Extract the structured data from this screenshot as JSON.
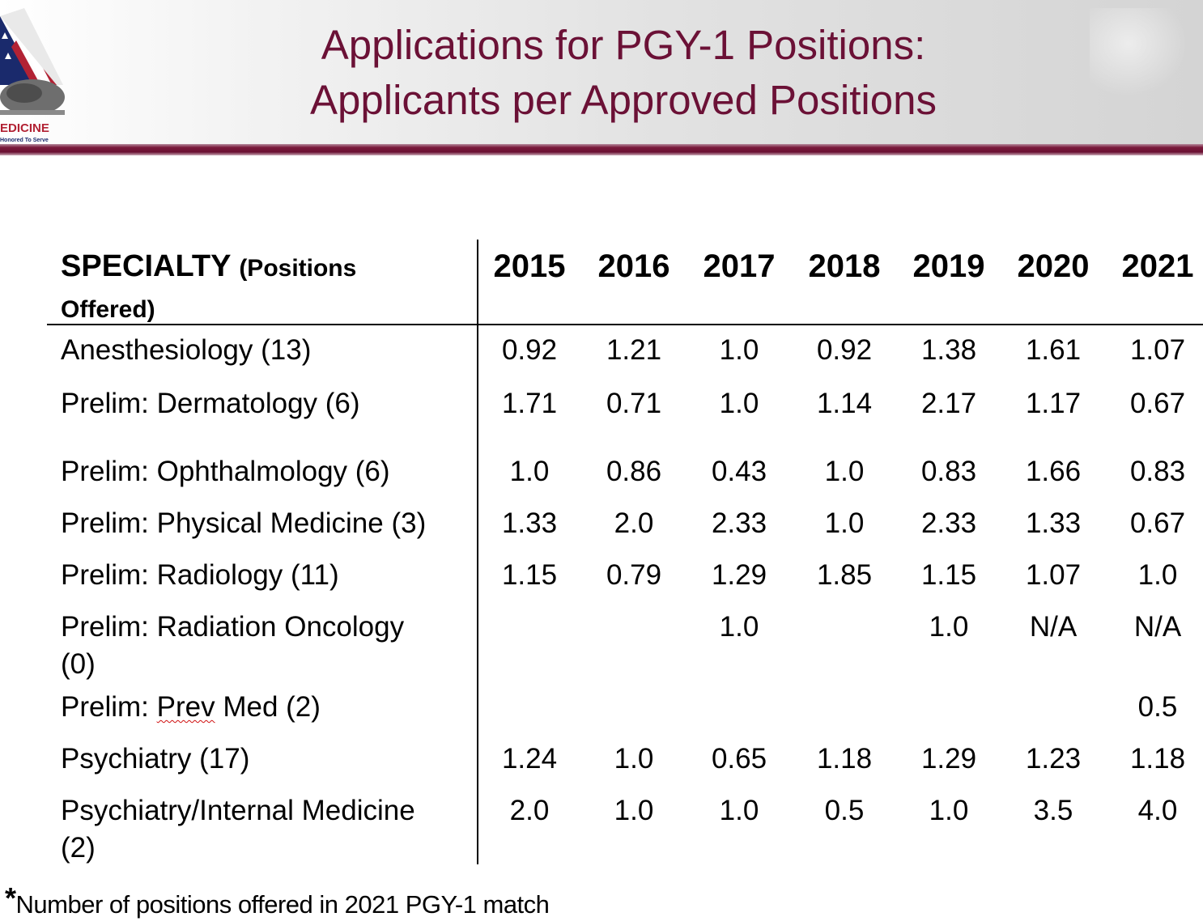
{
  "title": {
    "line1": "Applications for PGY-1 Positions:",
    "line2": "Applicants per Approved Positions"
  },
  "logo": {
    "text": "EDICINE",
    "subtext": "Honored To Serve"
  },
  "colors": {
    "title": "#6b1136",
    "rule": "#6a1032"
  },
  "table": {
    "specialty_header": "SPECIALTY",
    "specialty_header_suffix": "(Positions",
    "specialty_header_line2": "Offered)",
    "years": [
      "2015",
      "2016",
      "2017",
      "2018",
      "2019",
      "2020",
      "2021"
    ],
    "rows": [
      {
        "name": "Anesthesiology (13)",
        "values": [
          "0.92",
          "1.21",
          "1.0",
          "0.92",
          "1.38",
          "1.61",
          "1.07"
        ]
      },
      {
        "name": "Prelim: Dermatology (6)",
        "values": [
          "1.71",
          "0.71",
          "1.0",
          "1.14",
          "2.17",
          "1.17",
          "0.67"
        ]
      },
      {
        "name": "Prelim: Ophthalmology (6)",
        "values": [
          "1.0",
          "0.86",
          "0.43",
          "1.0",
          "0.83",
          "1.66",
          "0.83"
        ]
      },
      {
        "name": "Prelim: Physical Medicine (3)",
        "values": [
          "1.33",
          "2.0",
          "2.33",
          "1.0",
          "2.33",
          "1.33",
          "0.67"
        ]
      },
      {
        "name": "Prelim: Radiology (11)",
        "values": [
          "1.15",
          "0.79",
          "1.29",
          "1.85",
          "1.15",
          "1.07",
          "1.0"
        ]
      },
      {
        "name_line1": "Prelim: Radiation Oncology",
        "name_line2": "(0)",
        "values": [
          "",
          "",
          "1.0",
          "",
          "1.0",
          "N/A",
          "N/A"
        ]
      },
      {
        "name_prefix": "Prelim: ",
        "name_squiggle": "Prev",
        "name_suffix": " Med (2)",
        "values": [
          "",
          "",
          "",
          "",
          "",
          "",
          "0.5"
        ]
      },
      {
        "name": "Psychiatry (17)",
        "values": [
          "1.24",
          "1.0",
          "0.65",
          "1.18",
          "1.29",
          "1.23",
          "1.18"
        ]
      },
      {
        "name_line1": "Psychiatry/Internal Medicine",
        "name_line2": "(2)",
        "values": [
          "2.0",
          "1.0",
          "1.0",
          "0.5",
          "1.0",
          "3.5",
          "4.0"
        ]
      }
    ]
  },
  "footnote": {
    "star": "*",
    "text": "Number of positions offered in 2021 PGY-1 match"
  }
}
